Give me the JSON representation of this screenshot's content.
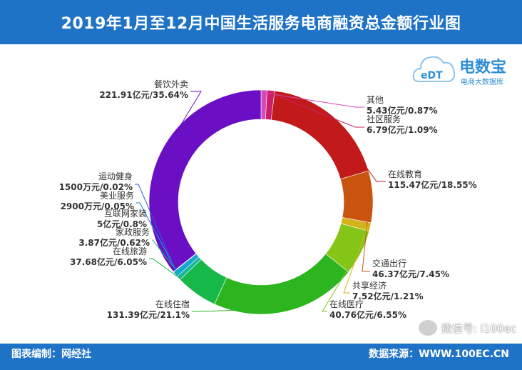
{
  "header": {
    "title": "2019年1月至12月中国生活服务电商融资总金额行业图"
  },
  "logo": {
    "name": "电数宝",
    "subtitle": "电商大数据库",
    "badge": "eDT"
  },
  "footer": {
    "left": "图表编制：网经社",
    "right": "数据来源：WWW.100EC.CN"
  },
  "watermark": {
    "text": "微信号: i100ec"
  },
  "chart_data": {
    "type": "pie",
    "donut": true,
    "start": "top",
    "direction": "clockwise",
    "slices": [
      {
        "name": "其他",
        "value_text": "5.43亿元/0.87%",
        "percent": 0.87,
        "color": "#d34ab8"
      },
      {
        "name": "社区服务",
        "value_text": "6.79亿元/1.09%",
        "percent": 1.09,
        "color": "#cc1f6a"
      },
      {
        "name": "在线教育",
        "value_text": "115.47亿元/18.55%",
        "percent": 18.55,
        "color": "#c21a1a"
      },
      {
        "name": "交通出行",
        "value_text": "46.37亿元/7.45%",
        "percent": 7.45,
        "color": "#c95410"
      },
      {
        "name": "共享经济",
        "value_text": "7.52亿元/1.21%",
        "percent": 1.21,
        "color": "#d4b21d"
      },
      {
        "name": "在线医疗",
        "value_text": "40.76亿元/6.55%",
        "percent": 6.55,
        "color": "#84c518"
      },
      {
        "name": "在线住宿",
        "value_text": "131.39亿元/21.1%",
        "percent": 21.1,
        "color": "#2db51f"
      },
      {
        "name": "在线旅游",
        "value_text": "37.68亿元/6.05%",
        "percent": 6.05,
        "color": "#16b84a"
      },
      {
        "name": "家政服务",
        "value_text": "3.87亿元/0.62%",
        "percent": 0.62,
        "color": "#16b899"
      },
      {
        "name": "互联网家装",
        "value_text": "5亿元/0.8%",
        "percent": 0.8,
        "color": "#17a6cf"
      },
      {
        "name": "美业服务",
        "value_text": "2900万元/0.05%",
        "percent": 0.05,
        "color": "#1b7fd0"
      },
      {
        "name": "运动健身",
        "value_text": "1500万元/0.02%",
        "percent": 0.02,
        "color": "#2a5fd0"
      },
      {
        "name": "餐饮外卖",
        "value_text": "221.91亿元/35.64%",
        "percent": 35.64,
        "color": "#6a0fc4"
      }
    ]
  }
}
